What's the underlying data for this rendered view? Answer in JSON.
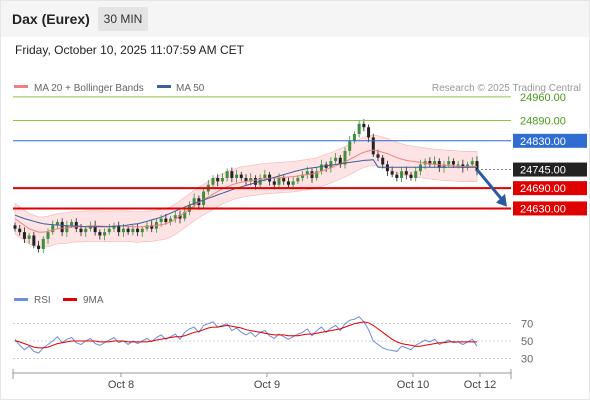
{
  "header": {
    "title": "Dax (Eurex)",
    "timeframe": "30 MIN",
    "datetime": "Friday, October 10, 2025 11:07:59 AM CET"
  },
  "legend": {
    "ma20_label": "MA 20 + Bollinger Bands",
    "ma50_label": "MA 50",
    "ma20_color": "#f08080",
    "ma50_color": "#3a5f9c",
    "research_text": "Research © 2025 Trading Central"
  },
  "colors": {
    "up": "#3e8e3e",
    "down": "#222222",
    "resistance": "#8bc34a",
    "pivot": "#2f6dd0",
    "support": "#e00000",
    "band_fill": "#fde3e3",
    "rsi": "#6c8edb",
    "rsi_ma": "#e00000",
    "arrow": "#2a5aa0"
  },
  "chart_data": [
    {
      "type": "candlestick",
      "title": "",
      "x_ticks": [
        "Oct 8",
        "Oct 9",
        "Oct 10",
        "Oct 12"
      ],
      "ylim": [
        24380,
        25060
      ],
      "levels": [
        {
          "value": 24960.0,
          "label": "24960.00",
          "kind": "resistance"
        },
        {
          "value": 24890.0,
          "label": "24890.00",
          "kind": "resistance"
        },
        {
          "value": 24830.0,
          "label": "24830.00",
          "kind": "pivot"
        },
        {
          "value": 24745.0,
          "label": "24745.00",
          "kind": "last"
        },
        {
          "value": 24690.0,
          "label": "24690.00",
          "kind": "support"
        },
        {
          "value": 24630.0,
          "label": "24630.00",
          "kind": "support"
        }
      ],
      "close": [
        24570,
        24560,
        24540,
        24550,
        24520,
        24510,
        24540,
        24560,
        24580,
        24590,
        24560,
        24580,
        24590,
        24570,
        24560,
        24570,
        24580,
        24560,
        24550,
        24560,
        24570,
        24580,
        24560,
        24570,
        24560,
        24570,
        24560,
        24570,
        24580,
        24570,
        24590,
        24600,
        24590,
        24600,
        24610,
        24600,
        24620,
        24640,
        24660,
        24640,
        24680,
        24700,
        24720,
        24710,
        24720,
        24740,
        24720,
        24730,
        24720,
        24710,
        24720,
        24700,
        24720,
        24730,
        24710,
        24700,
        24720,
        24710,
        24700,
        24710,
        24720,
        24730,
        24740,
        24720,
        24740,
        24760,
        24750,
        24770,
        24780,
        24760,
        24800,
        24830,
        24850,
        24880,
        24870,
        24840,
        24790,
        24780,
        24760,
        24740,
        24730,
        24720,
        24740,
        24730,
        24720,
        24740,
        24760,
        24770,
        24760,
        24770,
        24750,
        24760,
        24770,
        24760,
        24760,
        24750,
        24760,
        24770,
        24740
      ],
      "series": [
        {
          "name": "MA 20 + Bollinger Bands",
          "values": [
            24600,
            24590,
            24580,
            24570,
            24565,
            24560,
            24560,
            24562,
            24566,
            24570,
            24572,
            24572,
            24575,
            24576,
            24576,
            24577,
            24578,
            24578,
            24578,
            24577,
            24577,
            24578,
            24578,
            24578,
            24577,
            24576,
            24575,
            24576,
            24577,
            24578,
            24580,
            24582,
            24585,
            24590,
            24598,
            24608,
            24618,
            24628,
            24638,
            24648,
            24656,
            24664,
            24672,
            24680,
            24688,
            24694,
            24700,
            24704,
            24708,
            24710,
            24712,
            24714,
            24716,
            24718,
            24719,
            24720,
            24721,
            24722,
            24723,
            24724,
            24726,
            24728,
            24730,
            24732,
            24735,
            24740,
            24745,
            24750,
            24756,
            24762,
            24768,
            24775,
            24782,
            24790,
            24796,
            24800,
            24802,
            24800,
            24796,
            24792,
            24786,
            24780,
            24776,
            24772,
            24770,
            24768,
            24766,
            24764,
            24762,
            24760,
            24759,
            24758,
            24757,
            24756,
            24755,
            24754,
            24754,
            24754,
            24754
          ]
        },
        {
          "name": "MA 50",
          "values": [
            24610,
            24605,
            24600,
            24596,
            24592,
            24588,
            24585,
            24583,
            24582,
            24581,
            24580,
            24579,
            24578,
            24578,
            24577,
            24576,
            24576,
            24576,
            24576,
            24576,
            24576,
            24577,
            24578,
            24579,
            24581,
            24583,
            24585,
            24588,
            24592,
            24596,
            24600,
            24604,
            24610,
            24616,
            24622,
            24628,
            24634,
            24640,
            24645,
            24650,
            24655,
            24660,
            24665,
            24670,
            24675,
            24680,
            24685,
            24690,
            24694,
            24698,
            24702,
            24706,
            24710,
            24714,
            24718,
            24722,
            24726,
            24730,
            24734,
            24738,
            24742,
            24745,
            24748,
            24750,
            24752,
            24754,
            24756,
            24758,
            24760,
            24762,
            24764,
            24766,
            24768,
            24770,
            24772,
            24773,
            24774,
            24752,
            24752,
            24752,
            24752,
            24752,
            24752,
            24752,
            24752,
            24752,
            24752,
            24752,
            24752,
            24752,
            24752,
            24752,
            24752,
            24752,
            24752,
            24752,
            24752,
            24752,
            24752
          ]
        }
      ]
    },
    {
      "type": "line",
      "title": "",
      "ticks": [
        "70",
        "50",
        "30"
      ],
      "ylim": [
        20,
        80
      ],
      "series": [
        {
          "name": "RSI",
          "values": [
            52,
            45,
            40,
            44,
            38,
            36,
            42,
            46,
            50,
            55,
            48,
            52,
            54,
            48,
            46,
            50,
            53,
            47,
            45,
            48,
            51,
            54,
            48,
            50,
            46,
            50,
            47,
            50,
            53,
            49,
            54,
            57,
            52,
            55,
            58,
            52,
            60,
            64,
            66,
            60,
            68,
            70,
            72,
            66,
            68,
            70,
            62,
            65,
            60,
            57,
            60,
            55,
            60,
            62,
            56,
            53,
            58,
            55,
            52,
            55,
            58,
            60,
            64,
            56,
            62,
            66,
            60,
            65,
            68,
            62,
            70,
            74,
            75,
            78,
            72,
            63,
            50,
            46,
            42,
            40,
            39,
            38,
            44,
            42,
            40,
            45,
            48,
            51,
            49,
            52,
            46,
            49,
            51,
            48,
            49,
            46,
            49,
            52,
            44
          ]
        },
        {
          "name": "9MA",
          "values": [
            50,
            49,
            47,
            45,
            43,
            42,
            42,
            43,
            45,
            47,
            48,
            49,
            50,
            50,
            50,
            50,
            50,
            50,
            49,
            49,
            49,
            50,
            50,
            50,
            49,
            49,
            49,
            49,
            49,
            50,
            51,
            52,
            53,
            54,
            55,
            55,
            56,
            58,
            60,
            61,
            63,
            65,
            66,
            66,
            67,
            68,
            67,
            66,
            65,
            63,
            62,
            61,
            60,
            59,
            58,
            57,
            57,
            57,
            56,
            56,
            56,
            57,
            58,
            58,
            59,
            60,
            61,
            62,
            63,
            64,
            66,
            68,
            70,
            71,
            72,
            71,
            68,
            64,
            60,
            56,
            52,
            49,
            47,
            46,
            45,
            44,
            44,
            45,
            46,
            47,
            48,
            48,
            49,
            49,
            49,
            49,
            49,
            49,
            49
          ]
        }
      ]
    }
  ],
  "rsi_legend": {
    "rsi_label": "RSI",
    "ma_label": "9MA"
  }
}
